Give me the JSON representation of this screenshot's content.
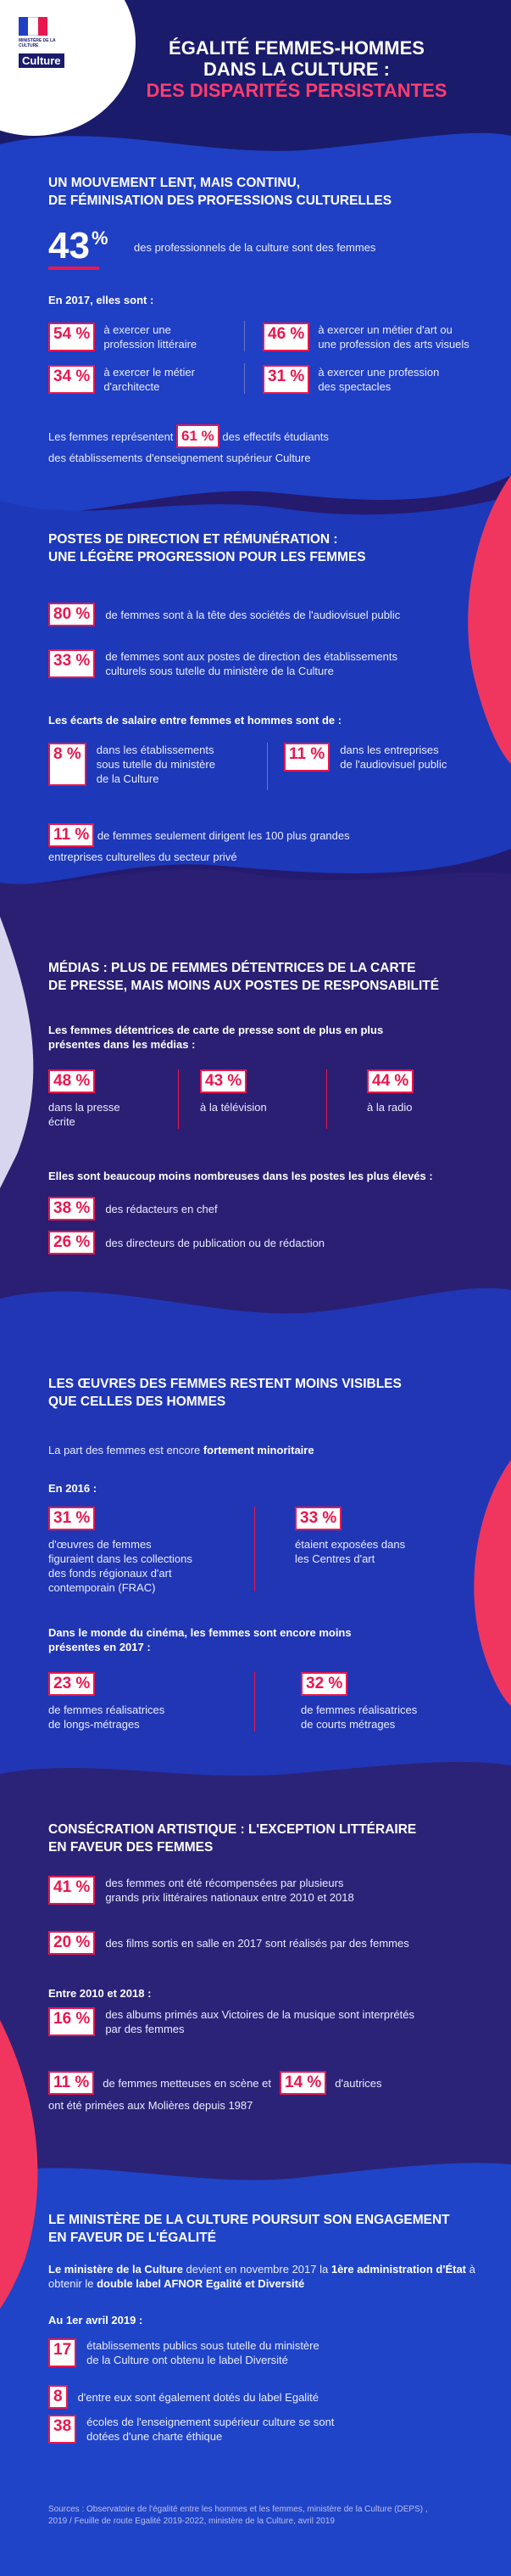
{
  "logo": {
    "ministry_line1": "MINISTÈRE DE LA CULTURE",
    "culture_label": "Culture"
  },
  "header": {
    "title_line1": "ÉGALITÉ FEMMES-HOMMES",
    "title_line2": "DANS LA CULTURE :",
    "title_line3": "DES DISPARITÉS PERSISTANTES"
  },
  "s1": {
    "title_line1": "UN MOUVEMENT LENT, MAIS CONTINU,",
    "title_line2": "DE FÉMINISATION DES PROFESSIONS CULTURELLES",
    "big_value": "43",
    "big_unit": "%",
    "big_text": "des professionnels de la culture sont des femmes",
    "intro": "En 2017, elles sont :",
    "items": [
      {
        "value": "54 %",
        "text1": "à exercer une",
        "text2": "profession littéraire"
      },
      {
        "value": "46 %",
        "text1": "à exercer un métier d'art ou",
        "text2": "une profession des arts visuels"
      },
      {
        "value": "34 %",
        "text1": "à exercer le métier",
        "text2": "d'architecte"
      },
      {
        "value": "31 %",
        "text1": "à exercer une profession",
        "text2": "des spectacles"
      }
    ],
    "students_pre": "Les femmes représentent",
    "students_value": "61 %",
    "students_post": "des effectifs étudiants",
    "students_line2": "des établissements d'enseignement supérieur Culture"
  },
  "s2": {
    "title_line1": "POSTES DE DIRECTION ET RÉMUNÉRATION :",
    "title_line2": "UNE LÉGÈRE PROGRESSION POUR LES FEMMES",
    "item1_value": "80 %",
    "item1_text": "de femmes sont à la tête des sociétés de l'audiovisuel public",
    "item2_value": "33 %",
    "item2_text1": "de femmes sont aux postes de direction des établissements",
    "item2_text2": "culturels sous tutelle du ministère de la Culture",
    "gap_intro": "Les écarts de salaire entre femmes et hommes sont de :",
    "gap1_value": "8 %",
    "gap1_text1": "dans les établissements",
    "gap1_text2": "sous tutelle du ministère",
    "gap1_text3": "de la Culture",
    "gap2_value": "11 %",
    "gap2_text1": "dans les entreprises",
    "gap2_text2": "de l'audiovisuel public",
    "item3_value": "11 %",
    "item3_text1": "de femmes seulement dirigent les 100 plus grandes",
    "item3_text2": "entreprises culturelles du secteur privé"
  },
  "s3": {
    "title_line1": "MÉDIAS : PLUS DE FEMMES DÉTENTRICES DE LA CARTE",
    "title_line2": "DE PRESSE, MAIS MOINS AUX POSTES DE RESPONSABILITÉ",
    "intro1": "Les femmes détentrices de carte de presse sont de plus en plus",
    "intro2": "présentes dans les médias :",
    "m1_value": "48 %",
    "m1_text1": "dans la presse",
    "m1_text2": "écrite",
    "m2_value": "43 %",
    "m2_text": "à la télévision",
    "m3_value": "44 %",
    "m3_text": "à la radio",
    "intro3": "Elles sont beaucoup moins nombreuses dans les postes les plus élevés :",
    "r1_value": "38 %",
    "r1_text": "des rédacteurs en chef",
    "r2_value": "26 %",
    "r2_text": "des directeurs de publication ou de rédaction"
  },
  "s4": {
    "title_line1": "LES ŒUVRES DES FEMMES RESTENT MOINS VISIBLES",
    "title_line2": "QUE CELLES DES HOMMES",
    "share_pre": "La part des femmes est encore",
    "share_bold": "fortement minoritaire",
    "year_intro": "En 2016 :",
    "a1_value": "31 %",
    "a1_text1": "d'œuvres de femmes",
    "a1_text2": "figuraient dans les collections",
    "a1_text3": "des fonds régionaux d'art",
    "a1_text4": "contemporain (FRAC)",
    "a2_value": "33 %",
    "a2_text1": "étaient exposées dans",
    "a2_text2": "les Centres d'art",
    "cinema_intro1": "Dans le monde du cinéma, les femmes sont encore moins",
    "cinema_intro2": "présentes en 2017 :",
    "c1_value": "23 %",
    "c1_text1": "de femmes réalisatrices",
    "c1_text2": "de longs-métrages",
    "c2_value": "32 %",
    "c2_text1": "de femmes réalisatrices",
    "c2_text2": "de courts métrages"
  },
  "s5": {
    "title_line1": "CONSÉCRATION ARTISTIQUE : L'EXCEPTION LITTÉRAIRE",
    "title_line2": "EN FAVEUR DES FEMMES",
    "p1_value": "41 %",
    "p1_text1": "des femmes ont été récompensées par plusieurs",
    "p1_text2": "grands prix littéraires nationaux entre 2010 et 2018",
    "p2_value": "20 %",
    "p2_text": "des films sortis en salle en 2017 sont réalisés par des femmes",
    "period_intro": "Entre 2010 et 2018 :",
    "p3_value": "16 %",
    "p3_text1": "des albums primés aux Victoires de la musique sont interprétés",
    "p3_text2": "par des femmes",
    "p4_value": "11 %",
    "p4_mid": "de femmes metteuses en scène et",
    "p5_value": "14 %",
    "p5_post": "d'autrices",
    "p45_line2": "ont été primées aux Molières depuis 1987"
  },
  "s6": {
    "title_line1": "LE MINISTÈRE DE LA CULTURE POURSUIT SON ENGAGEMENT",
    "title_line2": "EN FAVEUR DE L'ÉGALITÉ",
    "para_b1": "Le ministère de la Culture",
    "para_t1": " devient en novembre 2017 la ",
    "para_b2": "1ère administration",
    "para_b3": "d'État",
    "para_t2": " à obtenir le ",
    "para_b4": "double label AFNOR Egalité et Diversité",
    "date_intro": "Au 1er avril 2019 :",
    "n1_value": "17",
    "n1_text1": "établissements publics sous tutelle du ministère",
    "n1_text2": "de la Culture ont obtenu le label Diversité",
    "n2_value": "8",
    "n2_text": "d'entre eux sont également dotés du label Egalité",
    "n3_value": "38",
    "n3_text1": "écoles de l'enseignement supérieur culture se sont",
    "n3_text2": "dotées d'une charte éthique",
    "sources1": "Sources : Observatoire de l'égalité entre les hommes et les femmes, ministère de la Culture (DEPS) ,",
    "sources2": "2019 / Feuille de route Egalité 2019-2022, ministère de la Culture, avril 2019"
  },
  "colors": {
    "accent": "#e8174f",
    "navy": "#1a1b6b",
    "royal": "#1f3fc4",
    "purple": "#2a1f73"
  }
}
